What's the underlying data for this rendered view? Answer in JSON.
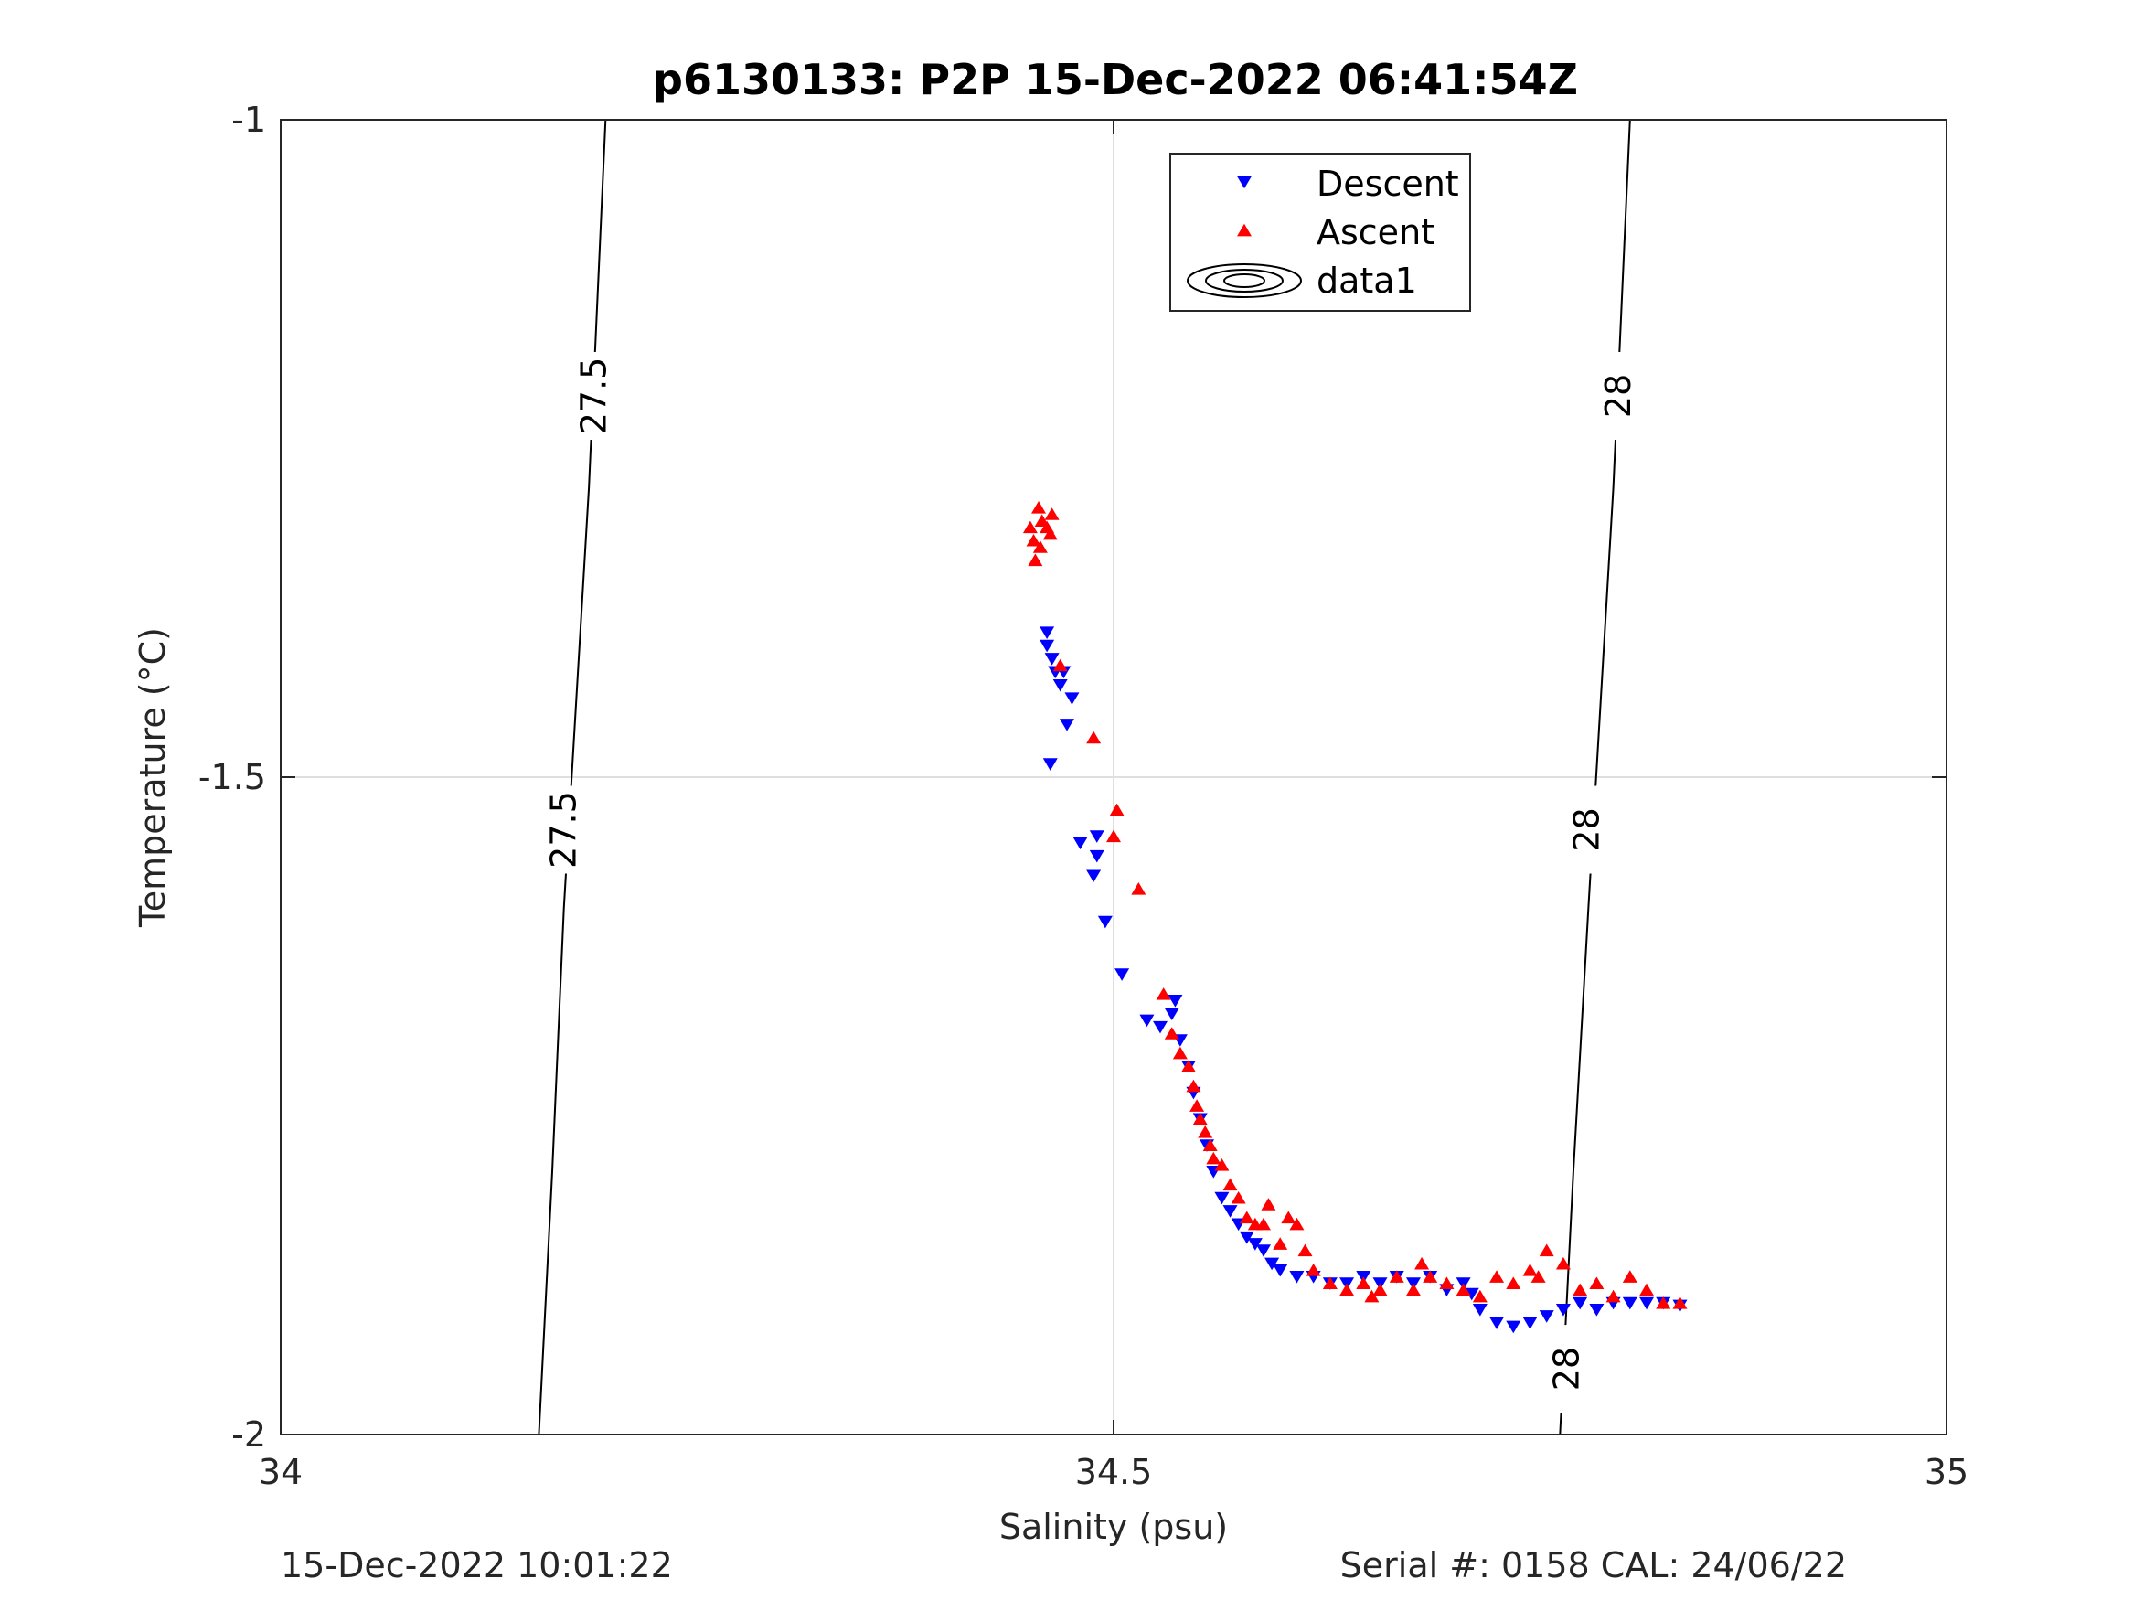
{
  "chart_data": {
    "type": "scatter",
    "title": "p6130133: P2P 15-Dec-2022 06:41:54Z",
    "xlabel": "Salinity (psu)",
    "ylabel": "Temperature (°C)",
    "xlim": [
      34,
      35
    ],
    "ylim": [
      -2,
      -1
    ],
    "xticks": [
      34,
      34.5,
      35
    ],
    "yticks": [
      -2,
      -1.5,
      -1
    ],
    "xtick_labels": [
      "34",
      "34.5",
      "35"
    ],
    "ytick_labels": [
      "-2",
      "-1.5",
      "-1"
    ],
    "grid": true,
    "legend_position": "top-center",
    "legend": [
      "Descent",
      "Ascent",
      "data1"
    ],
    "series": [
      {
        "name": "Descent",
        "marker": "triangle-down",
        "color": "#0000ff",
        "points": [
          [
            34.46,
            -1.39
          ],
          [
            34.46,
            -1.4
          ],
          [
            34.463,
            -1.41
          ],
          [
            34.465,
            -1.42
          ],
          [
            34.468,
            -1.43
          ],
          [
            34.47,
            -1.42
          ],
          [
            34.475,
            -1.44
          ],
          [
            34.472,
            -1.46
          ],
          [
            34.462,
            -1.49
          ],
          [
            34.48,
            -1.55
          ],
          [
            34.49,
            -1.545
          ],
          [
            34.49,
            -1.56
          ],
          [
            34.488,
            -1.575
          ],
          [
            34.495,
            -1.61
          ],
          [
            34.505,
            -1.65
          ],
          [
            34.52,
            -1.685
          ],
          [
            34.528,
            -1.69
          ],
          [
            34.535,
            -1.68
          ],
          [
            34.537,
            -1.67
          ],
          [
            34.54,
            -1.7
          ],
          [
            34.545,
            -1.72
          ],
          [
            34.548,
            -1.74
          ],
          [
            34.552,
            -1.76
          ],
          [
            34.556,
            -1.78
          ],
          [
            34.56,
            -1.8
          ],
          [
            34.565,
            -1.82
          ],
          [
            34.57,
            -1.83
          ],
          [
            34.575,
            -1.84
          ],
          [
            34.58,
            -1.85
          ],
          [
            34.585,
            -1.855
          ],
          [
            34.59,
            -1.86
          ],
          [
            34.595,
            -1.87
          ],
          [
            34.6,
            -1.875
          ],
          [
            34.61,
            -1.88
          ],
          [
            34.62,
            -1.88
          ],
          [
            34.63,
            -1.885
          ],
          [
            34.64,
            -1.885
          ],
          [
            34.65,
            -1.88
          ],
          [
            34.66,
            -1.885
          ],
          [
            34.67,
            -1.88
          ],
          [
            34.68,
            -1.885
          ],
          [
            34.69,
            -1.88
          ],
          [
            34.7,
            -1.89
          ],
          [
            34.71,
            -1.885
          ],
          [
            34.715,
            -1.893
          ],
          [
            34.72,
            -1.905
          ],
          [
            34.73,
            -1.915
          ],
          [
            34.74,
            -1.918
          ],
          [
            34.75,
            -1.915
          ],
          [
            34.76,
            -1.91
          ],
          [
            34.77,
            -1.905
          ],
          [
            34.78,
            -1.9
          ],
          [
            34.79,
            -1.905
          ],
          [
            34.8,
            -1.9
          ],
          [
            34.81,
            -1.9
          ],
          [
            34.82,
            -1.9
          ],
          [
            34.83,
            -1.9
          ],
          [
            34.84,
            -1.902
          ]
        ]
      },
      {
        "name": "Ascent",
        "marker": "triangle-up",
        "color": "#ff0000",
        "points": [
          [
            34.45,
            -1.31
          ],
          [
            34.453,
            -1.335
          ],
          [
            34.456,
            -1.325
          ],
          [
            34.46,
            -1.31
          ],
          [
            34.457,
            -1.305
          ],
          [
            34.455,
            -1.295
          ],
          [
            34.462,
            -1.315
          ],
          [
            34.463,
            -1.3
          ],
          [
            34.452,
            -1.32
          ],
          [
            34.468,
            -1.415
          ],
          [
            34.488,
            -1.47
          ],
          [
            34.5,
            -1.545
          ],
          [
            34.502,
            -1.525
          ],
          [
            34.515,
            -1.585
          ],
          [
            34.53,
            -1.665
          ],
          [
            34.535,
            -1.695
          ],
          [
            34.54,
            -1.71
          ],
          [
            34.545,
            -1.72
          ],
          [
            34.548,
            -1.735
          ],
          [
            34.55,
            -1.75
          ],
          [
            34.552,
            -1.76
          ],
          [
            34.555,
            -1.77
          ],
          [
            34.558,
            -1.78
          ],
          [
            34.56,
            -1.79
          ],
          [
            34.565,
            -1.795
          ],
          [
            34.57,
            -1.81
          ],
          [
            34.575,
            -1.82
          ],
          [
            34.58,
            -1.835
          ],
          [
            34.585,
            -1.84
          ],
          [
            34.59,
            -1.84
          ],
          [
            34.593,
            -1.825
          ],
          [
            34.6,
            -1.855
          ],
          [
            34.605,
            -1.835
          ],
          [
            34.61,
            -1.84
          ],
          [
            34.615,
            -1.86
          ],
          [
            34.62,
            -1.875
          ],
          [
            34.63,
            -1.885
          ],
          [
            34.64,
            -1.89
          ],
          [
            34.65,
            -1.885
          ],
          [
            34.655,
            -1.895
          ],
          [
            34.66,
            -1.89
          ],
          [
            34.67,
            -1.88
          ],
          [
            34.68,
            -1.89
          ],
          [
            34.685,
            -1.87
          ],
          [
            34.69,
            -1.88
          ],
          [
            34.7,
            -1.885
          ],
          [
            34.71,
            -1.89
          ],
          [
            34.72,
            -1.895
          ],
          [
            34.73,
            -1.88
          ],
          [
            34.74,
            -1.885
          ],
          [
            34.75,
            -1.875
          ],
          [
            34.755,
            -1.88
          ],
          [
            34.76,
            -1.86
          ],
          [
            34.77,
            -1.87
          ],
          [
            34.78,
            -1.89
          ],
          [
            34.79,
            -1.885
          ],
          [
            34.8,
            -1.895
          ],
          [
            34.81,
            -1.88
          ],
          [
            34.82,
            -1.89
          ],
          [
            34.83,
            -1.9
          ],
          [
            34.84,
            -1.9
          ]
        ]
      }
    ],
    "density_contours": [
      {
        "label": "27.5",
        "points": [
          [
            34.195,
            -1.0
          ],
          [
            34.185,
            -1.28
          ],
          [
            34.17,
            -1.6
          ],
          [
            34.163,
            -1.8
          ],
          [
            34.155,
            -2.0
          ]
        ],
        "label_positions": [
          [
            34.188,
            -1.21
          ],
          [
            34.17,
            -1.54
          ]
        ]
      },
      {
        "label": "28",
        "points": [
          [
            34.81,
            -1.0
          ],
          [
            34.8,
            -1.28
          ],
          [
            34.785,
            -1.6
          ],
          [
            34.776,
            -1.8
          ],
          [
            34.768,
            -2.0
          ]
        ],
        "label_positions": [
          [
            34.803,
            -1.21
          ],
          [
            34.784,
            -1.54
          ],
          [
            34.772,
            -1.95
          ]
        ]
      }
    ]
  },
  "footer": {
    "left_text": "15-Dec-2022 10:01:22",
    "right_text": "Serial #: 0158  CAL: 24/06/22"
  }
}
